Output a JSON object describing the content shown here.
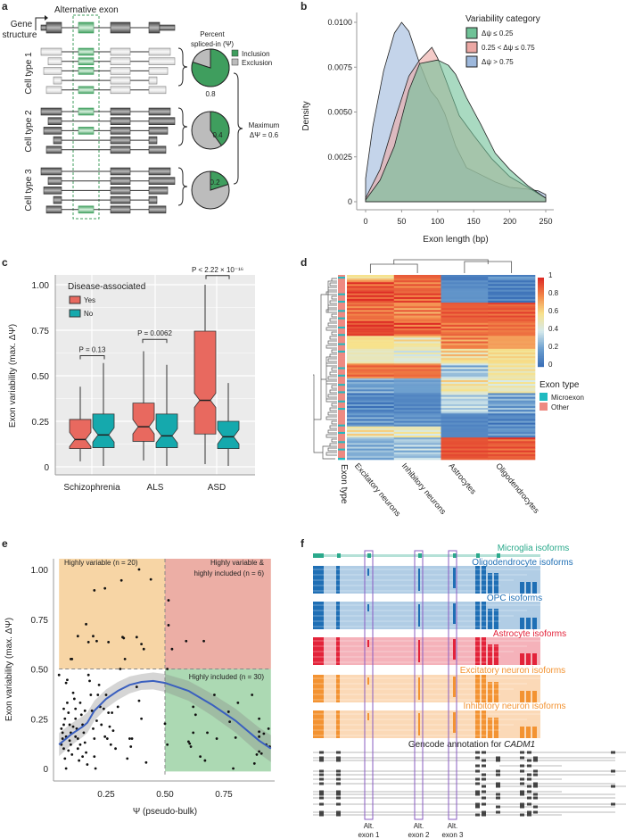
{
  "panels": {
    "a": "a",
    "b": "b",
    "c": "c",
    "d": "d",
    "e": "e",
    "f": "f"
  },
  "panel_a": {
    "alt_exon_label": "Alternative exon",
    "gene_label_1": "Gene",
    "gene_label_2": "structure",
    "cell_types": [
      "Cell type 1",
      "Cell type 2",
      "Cell type 3"
    ],
    "psi_title_1": "Percent",
    "psi_title_2": "spliced-in (Ψ)",
    "legend": [
      "Inclusion",
      "Exclusion"
    ],
    "pie_values": [
      0.8,
      0.4,
      0.2
    ],
    "pie_labels": [
      "0.8",
      "0.4",
      "0.2"
    ],
    "max_label_1": "Maximum",
    "max_label_2": "ΔΨ = 0.6",
    "colors": {
      "inclusion": "#3f9e5e",
      "exclusion": "#bcbcbc"
    }
  },
  "chart_data": [
    {
      "panel": "b",
      "type": "area",
      "xlabel": "Exon length (bp)",
      "ylabel": "Density",
      "xlim": [
        0,
        250
      ],
      "ylim": [
        0,
        0.0105
      ],
      "xticks": [
        "0",
        "50",
        "100",
        "150",
        "200",
        "250"
      ],
      "yticks": [
        "0",
        "0.0025",
        "0.0050",
        "0.0075",
        "0.0100"
      ],
      "legend_title": "Variability category",
      "legend_placement": "top-right",
      "series": [
        {
          "name": "Δψ > 0.75",
          "color": "#9db8dc",
          "x": [
            0,
            10,
            25,
            40,
            50,
            60,
            75,
            90,
            100,
            110,
            125,
            140,
            160,
            180,
            200,
            225,
            240,
            250
          ],
          "y": [
            0.0013,
            0.0042,
            0.0073,
            0.0094,
            0.01,
            0.0095,
            0.0077,
            0.0062,
            0.0057,
            0.0049,
            0.0031,
            0.0019,
            0.0015,
            0.0011,
            0.0008,
            0.0007,
            0.0006,
            0.0004
          ]
        },
        {
          "name": "0.25 < Δψ ≤ 0.75",
          "color": "#eca8a4",
          "x": [
            0,
            20,
            40,
            60,
            75,
            92,
            100,
            115,
            130,
            150,
            175,
            200,
            225,
            250
          ],
          "y": [
            0.0002,
            0.0018,
            0.0045,
            0.007,
            0.0079,
            0.0086,
            0.008,
            0.0064,
            0.0048,
            0.0037,
            0.0024,
            0.0014,
            0.0008,
            0.0002
          ]
        },
        {
          "name": "Δψ ≤ 0.25",
          "color": "#6fc297",
          "x": [
            0,
            20,
            40,
            60,
            75,
            100,
            115,
            125,
            140,
            160,
            180,
            200,
            225,
            250
          ],
          "y": [
            0.0001,
            0.0012,
            0.0031,
            0.0062,
            0.0077,
            0.0079,
            0.0076,
            0.0071,
            0.0058,
            0.0043,
            0.0027,
            0.0018,
            0.0009,
            0.0002
          ]
        }
      ]
    },
    {
      "panel": "c",
      "type": "box",
      "ylabel": "Exon variability (max. ΔΨ)",
      "ylim": [
        0,
        1.0
      ],
      "yticks": [
        "0",
        "0.25",
        "0.50",
        "0.75",
        "1.00"
      ],
      "categories": [
        "Schizophrenia",
        "ALS",
        "ASD"
      ],
      "legend_title": "Disease-associated",
      "legend_placement": "top-left",
      "series": [
        {
          "name": "Yes",
          "color": "#e8695f",
          "stats": [
            {
              "min": 0.03,
              "q1": 0.1,
              "median": 0.15,
              "q3": 0.26,
              "max": 0.44
            },
            {
              "min": 0.035,
              "q1": 0.14,
              "median": 0.22,
              "q3": 0.35,
              "max": 0.635
            },
            {
              "min": 0.015,
              "q1": 0.18,
              "median": 0.365,
              "q3": 0.745,
              "max": 1.0
            }
          ]
        },
        {
          "name": "No",
          "color": "#15a9ad",
          "stats": [
            {
              "min": 0.005,
              "q1": 0.105,
              "median": 0.175,
              "q3": 0.29,
              "max": 0.57
            },
            {
              "min": 0.005,
              "q1": 0.105,
              "median": 0.17,
              "q3": 0.29,
              "max": 0.56
            },
            {
              "min": 0.005,
              "q1": 0.1,
              "median": 0.165,
              "q3": 0.25,
              "max": 0.46
            }
          ]
        }
      ],
      "annotations": [
        "P = 0.13",
        "P = 0.0062",
        "P < 2.22 × 10⁻¹⁶"
      ]
    },
    {
      "panel": "d",
      "type": "heatmap",
      "columns": [
        "Excitatory neurons",
        "Inhibitory neurons",
        "Astrocytes",
        "Oligodendrocytes"
      ],
      "row_annotation_label": "Exon type",
      "colorbar_ticks": [
        "0",
        "0.2",
        "0.4",
        "0.6",
        "0.8",
        "1"
      ],
      "legend_title": "Exon type",
      "legend": [
        {
          "name": "Microexon",
          "color": "#1fbac0"
        },
        {
          "name": "Other",
          "color": "#ee8a82"
        }
      ],
      "row_blocks": [
        {
          "rows": 3,
          "values": [
            0.6,
            0.88,
            0.05,
            0.15
          ]
        },
        {
          "rows": 5,
          "values": [
            0.9,
            0.85,
            0.12,
            0.06
          ]
        },
        {
          "rows": 7,
          "values": [
            0.95,
            0.9,
            0.15,
            0.05
          ]
        },
        {
          "rows": 10,
          "values": [
            0.85,
            0.8,
            0.9,
            0.9
          ]
        },
        {
          "rows": 8,
          "values": [
            0.95,
            0.9,
            0.85,
            0.85
          ]
        },
        {
          "rows": 7,
          "values": [
            0.6,
            0.55,
            0.8,
            0.75
          ]
        },
        {
          "rows": 8,
          "values": [
            0.5,
            0.45,
            0.6,
            0.6
          ]
        },
        {
          "rows": 8,
          "values": [
            0.85,
            0.85,
            0.3,
            0.55
          ]
        },
        {
          "rows": 8,
          "values": [
            0.2,
            0.2,
            0.55,
            0.5
          ]
        },
        {
          "rows": 11,
          "values": [
            0.1,
            0.1,
            0.35,
            0.2
          ]
        },
        {
          "rows": 7,
          "values": [
            0.15,
            0.15,
            0.1,
            0.1
          ]
        },
        {
          "rows": 6,
          "values": [
            0.55,
            0.5,
            0.1,
            0.15
          ]
        },
        {
          "rows": 12,
          "values": [
            0.25,
            0.3,
            0.92,
            0.9
          ]
        }
      ]
    },
    {
      "panel": "e",
      "type": "scatter",
      "xlabel": "Ψ (pseudo-bulk)",
      "ylabel": "Exon variability (max. ΔΨ)",
      "xlim": [
        0,
        1
      ],
      "ylim": [
        0,
        1.0
      ],
      "xticks": [
        "0.25",
        "0.50",
        "0.75"
      ],
      "yticks": [
        "0",
        "0.25",
        "0.50",
        "0.75",
        "1.00"
      ],
      "quadrants": [
        {
          "label": "Highly variable (n = 20)",
          "color": "#f7d5a5"
        },
        {
          "label_1": "Highly variable &",
          "label_2": "highly included (n = 6)",
          "color": "#ecaea5"
        },
        {
          "label": "Highly included (n = 30)",
          "color": "#acd9b3"
        }
      ],
      "points": [
        [
          0.1,
          0.55
        ],
        [
          0.105,
          0.55
        ],
        [
          0.13,
          0.665
        ],
        [
          0.165,
          0.725
        ],
        [
          0.175,
          0.635
        ],
        [
          0.2,
          0.895
        ],
        [
          0.195,
          0.665
        ],
        [
          0.21,
          0.64
        ],
        [
          0.245,
          0.905
        ],
        [
          0.26,
          0.635
        ],
        [
          0.315,
          0.945
        ],
        [
          0.32,
          0.66
        ],
        [
          0.325,
          0.655
        ],
        [
          0.33,
          0.55
        ],
        [
          0.31,
          0.5
        ],
        [
          0.38,
          0.66
        ],
        [
          0.39,
          1.0
        ],
        [
          0.4,
          0.625
        ],
        [
          0.41,
          0.6
        ],
        [
          0.44,
          0.95
        ],
        [
          0.515,
          0.845
        ],
        [
          0.515,
          0.72
        ],
        [
          0.53,
          0.6
        ],
        [
          0.59,
          0.64
        ],
        [
          0.665,
          0.64
        ],
        [
          0.51,
          0.5
        ],
        [
          0.5,
          0.225
        ],
        [
          0.51,
          0.12
        ],
        [
          0.62,
          0.31
        ],
        [
          0.63,
          0.27
        ],
        [
          0.62,
          0.18
        ],
        [
          0.6,
          0.135
        ],
        [
          0.605,
          0.125
        ],
        [
          0.61,
          0.11
        ],
        [
          0.65,
          0.06
        ],
        [
          0.67,
          0.04
        ],
        [
          0.68,
          0.18
        ],
        [
          0.71,
          0.37
        ],
        [
          0.72,
          0.15
        ],
        [
          0.77,
          0.285
        ],
        [
          0.775,
          0.235
        ],
        [
          0.79,
          0.0
        ],
        [
          0.8,
          0.155
        ],
        [
          0.81,
          0.33
        ],
        [
          0.87,
          0.37
        ],
        [
          0.88,
          0.025
        ],
        [
          0.89,
          0.07
        ],
        [
          0.9,
          0.25
        ],
        [
          0.9,
          0.185
        ],
        [
          0.9,
          0.16
        ],
        [
          0.9,
          0.085
        ],
        [
          0.91,
          0.075
        ],
        [
          0.92,
          0.175
        ],
        [
          0.93,
          0.12
        ],
        [
          0.94,
          0.2
        ],
        [
          0.945,
          0.11
        ],
        [
          0.05,
          0.47
        ],
        [
          0.08,
          0.43
        ],
        [
          0.085,
          0.445
        ],
        [
          0.07,
          0.3
        ],
        [
          0.075,
          0.25
        ],
        [
          0.06,
          0.2
        ],
        [
          0.065,
          0.15
        ],
        [
          0.07,
          0.1
        ],
        [
          0.075,
          0.05
        ],
        [
          0.08,
          0.0
        ],
        [
          0.085,
          0.33
        ],
        [
          0.09,
          0.28
        ],
        [
          0.095,
          0.22
        ],
        [
          0.1,
          0.18
        ],
        [
          0.1,
          0.12
        ],
        [
          0.105,
          0.07
        ],
        [
          0.11,
          0.38
        ],
        [
          0.115,
          0.35
        ],
        [
          0.12,
          0.3
        ],
        [
          0.12,
          0.25
        ],
        [
          0.125,
          0.2
        ],
        [
          0.13,
          0.15
        ],
        [
          0.13,
          0.1
        ],
        [
          0.135,
          0.04
        ],
        [
          0.14,
          0.33
        ],
        [
          0.145,
          0.27
        ],
        [
          0.15,
          0.22
        ],
        [
          0.155,
          0.18
        ],
        [
          0.16,
          0.13
        ],
        [
          0.165,
          0.08
        ],
        [
          0.17,
          0.02
        ],
        [
          0.175,
          0.47
        ],
        [
          0.18,
          0.44
        ],
        [
          0.185,
          0.37
        ],
        [
          0.19,
          0.29
        ],
        [
          0.195,
          0.2
        ],
        [
          0.2,
          0.15
        ],
        [
          0.2,
          0.06
        ],
        [
          0.205,
          0.0
        ],
        [
          0.21,
          0.24
        ],
        [
          0.215,
          0.37
        ],
        [
          0.22,
          0.42
        ],
        [
          0.225,
          0.31
        ],
        [
          0.23,
          0.22
        ],
        [
          0.24,
          0.3
        ],
        [
          0.245,
          0.16
        ],
        [
          0.25,
          0.37
        ],
        [
          0.255,
          0.15
        ],
        [
          0.26,
          0.28
        ],
        [
          0.265,
          0.21
        ],
        [
          0.27,
          0.12
        ],
        [
          0.275,
          0.28
        ],
        [
          0.28,
          0.19
        ],
        [
          0.29,
          0.1
        ],
        [
          0.3,
          0.31
        ],
        [
          0.34,
          0.05
        ],
        [
          0.35,
          0.15
        ],
        [
          0.355,
          0.11
        ],
        [
          0.36,
          0.15
        ],
        [
          0.38,
          0.41
        ],
        [
          0.39,
          0.34
        ],
        [
          0.4,
          0.25
        ],
        [
          0.42,
          0.03
        ],
        [
          0.06,
          0.12
        ],
        [
          0.065,
          0.18
        ],
        [
          0.07,
          0.22
        ],
        [
          0.08,
          0.16
        ],
        [
          0.09,
          0.09
        ],
        [
          0.095,
          0.14
        ],
        [
          0.11,
          0.21
        ],
        [
          0.12,
          0.16
        ],
        [
          0.14,
          0.12
        ],
        [
          0.15,
          0.06
        ],
        [
          0.16,
          0.29
        ]
      ],
      "trend": {
        "color": "#3a5fbf",
        "x": [
          0.05,
          0.1,
          0.15,
          0.17,
          0.2,
          0.25,
          0.3,
          0.35,
          0.4,
          0.45,
          0.5,
          0.6,
          0.7,
          0.8,
          0.9,
          0.95
        ],
        "y": [
          0.12,
          0.17,
          0.21,
          0.23,
          0.29,
          0.35,
          0.39,
          0.42,
          0.435,
          0.44,
          0.43,
          0.39,
          0.32,
          0.24,
          0.14,
          0.1
        ]
      }
    }
  ],
  "panel_f": {
    "tracks": [
      {
        "label": "Microglia isoforms",
        "color": "#2aa98b"
      },
      {
        "label": "Oligodendrocyte isoforms",
        "color": "#1f6fb5"
      },
      {
        "label": "OPC isoforms",
        "color": "#1f6fb5"
      },
      {
        "label": "Astrocyte isoforms",
        "color": "#e3233a"
      },
      {
        "label": "Excitatory neuron isoforms",
        "color": "#f39332"
      },
      {
        "label": "Inhibitory neuron isoforms",
        "color": "#f39332"
      }
    ],
    "gencode_label": "Gencode annotation for ",
    "gene_name": "CADM1",
    "alt_exons": [
      {
        "line1": "Alt.",
        "line2": "exon 1"
      },
      {
        "line1": "Alt.",
        "line2": "exon 2"
      },
      {
        "line1": "Alt.",
        "line2": "exon 3"
      }
    ],
    "box_color": "#8a5cc2"
  }
}
